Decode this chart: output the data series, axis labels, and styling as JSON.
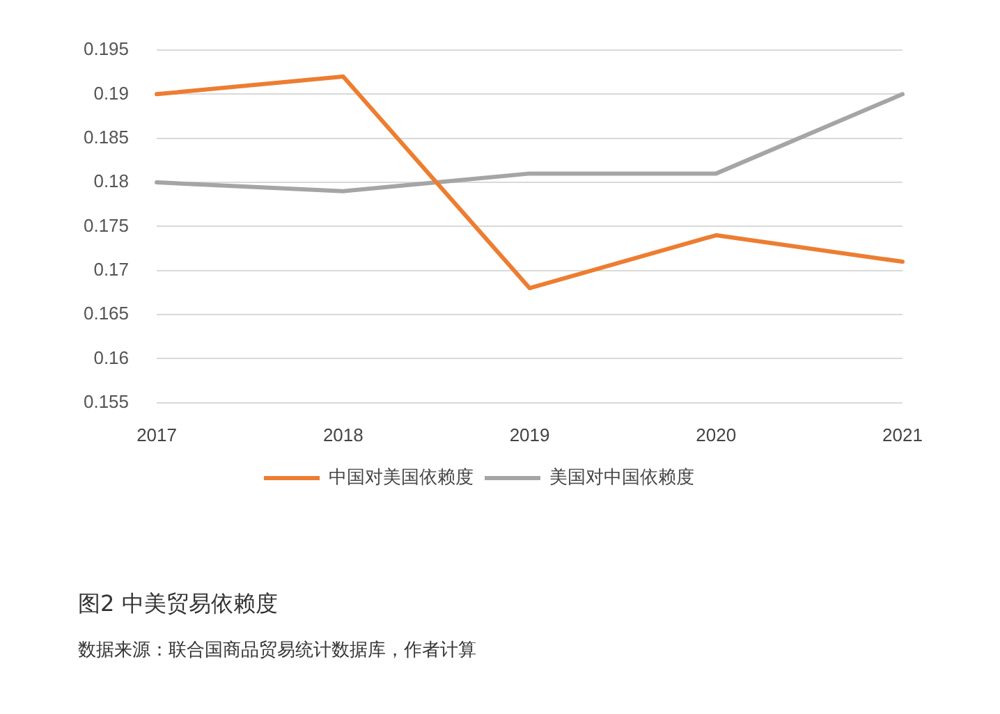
{
  "chart_data": {
    "type": "line",
    "title": "图2  中美贸易依赖度",
    "categories": [
      "2017",
      "2018",
      "2019",
      "2020",
      "2021"
    ],
    "series": [
      {
        "name": "中国对美国依赖度",
        "color": "#ed7d31",
        "values": [
          0.19,
          0.192,
          0.168,
          0.174,
          0.171
        ]
      },
      {
        "name": "美国对中国依赖度",
        "color": "#a5a5a5",
        "values": [
          0.18,
          0.179,
          0.181,
          0.181,
          0.19
        ]
      }
    ],
    "ylim": [
      0.155,
      0.195
    ],
    "yticks": [
      0.155,
      0.16,
      0.165,
      0.17,
      0.175,
      0.18,
      0.185,
      0.19,
      0.195
    ],
    "grid": "y",
    "legend": "bottom",
    "marker": "none",
    "line_style": "solid",
    "annotations": [
      "数据来源：联合国商品贸易统计数据库，作者计算"
    ]
  }
}
